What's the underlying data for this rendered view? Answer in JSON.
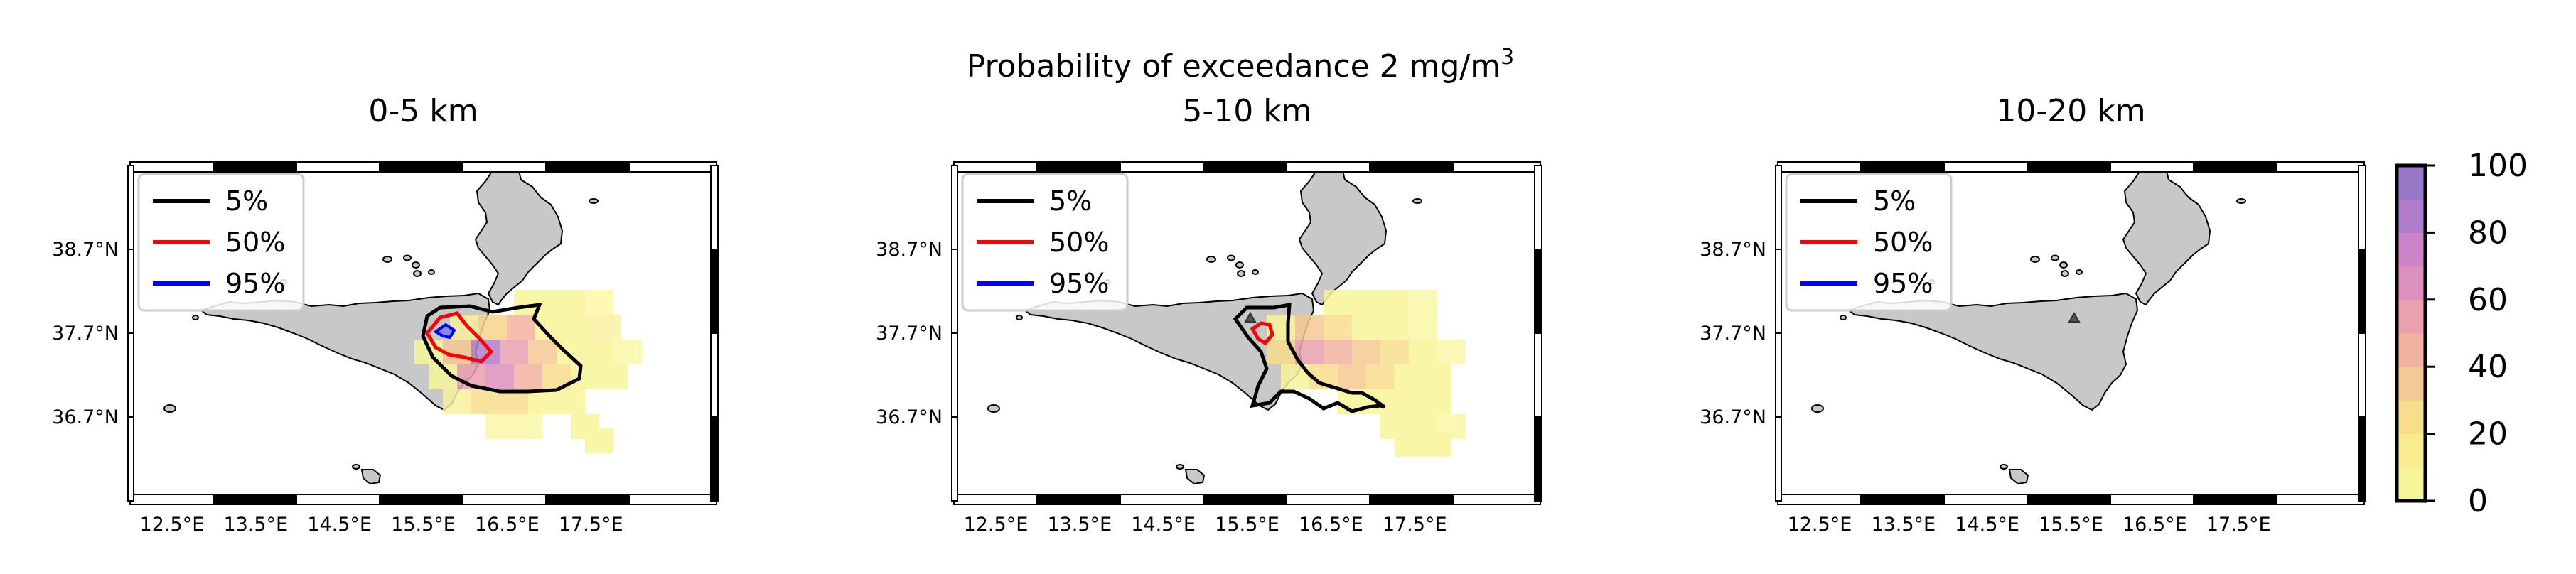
{
  "figure": {
    "title_main": "Probability of exceedance 2 mg/m",
    "title_sup": "3"
  },
  "axes": {
    "lon_ticks": [
      "12.5°E",
      "13.5°E",
      "14.5°E",
      "15.5°E",
      "16.5°E",
      "17.5°E"
    ],
    "lat_ticks": [
      "38.7°N",
      "37.7°N",
      "36.7°N"
    ],
    "lon_values": [
      12.5,
      13.5,
      14.5,
      15.5,
      16.5,
      17.5
    ],
    "lat_values": [
      38.7,
      37.7,
      36.7
    ],
    "lon_range": [
      12.0,
      19.0
    ],
    "lat_range": [
      35.7,
      39.7
    ]
  },
  "legend": {
    "entries": [
      {
        "label": "5%",
        "color": "#000000"
      },
      {
        "label": "50%",
        "color": "#ff0000"
      },
      {
        "label": "95%",
        "color": "#0000ff"
      }
    ]
  },
  "panels": [
    {
      "title": "0-5 km",
      "show_vent": false
    },
    {
      "title": "5-10 km",
      "show_vent": true
    },
    {
      "title": "10-20 km",
      "show_vent": true
    }
  ],
  "colorbar": {
    "ticks": [
      "0",
      "20",
      "40",
      "60",
      "80",
      "100"
    ],
    "tick_values": [
      0,
      20,
      40,
      60,
      80,
      100
    ],
    "range": [
      0,
      100
    ],
    "colors": [
      "#f7f59a",
      "#f9ec8e",
      "#f8dd8c",
      "#f5c994",
      "#f1b3a0",
      "#eba0b0",
      "#dd90be",
      "#cc83c8",
      "#b27ccc",
      "#9778c8"
    ]
  }
}
